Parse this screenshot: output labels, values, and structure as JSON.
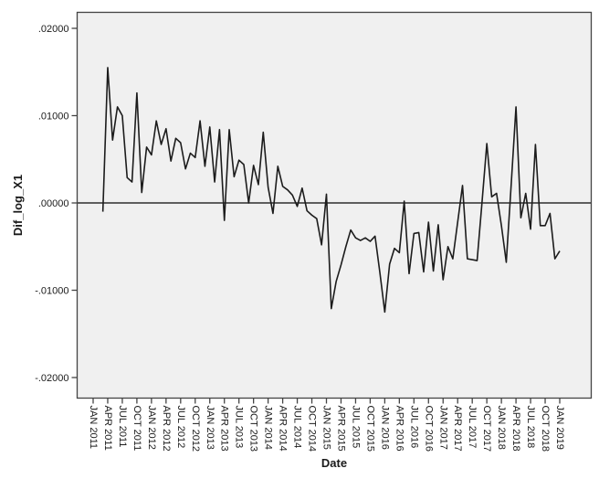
{
  "figure": {
    "background": "#ffffff",
    "plot_background": "#f0f0f0",
    "frame_color": "#444444",
    "series_color": "#1c1c1c",
    "zero_line_color": "#2e2e2e",
    "text_color": "#1a1a1a"
  },
  "y_axis": {
    "title": "Dif_log_X1",
    "tick_labels": [
      ".02000",
      ".01000",
      ".00000",
      "-.01000",
      "-.02000"
    ],
    "tick_values": [
      0.02,
      0.01,
      0.0,
      -0.01,
      -0.02
    ]
  },
  "x_axis": {
    "title": "Date",
    "tick_labels": [
      "JAN 2011",
      "APR 2011",
      "JUL 2011",
      "OCT 2011",
      "JAN 2012",
      "APR 2012",
      "JUL 2012",
      "OCT 2012",
      "JAN 2013",
      "APR 2013",
      "JUL 2013",
      "OCT 2013",
      "JAN 2014",
      "APR 2014",
      "JUL 2014",
      "OCT 2014",
      "JAN 2015",
      "APR 2015",
      "JUL 2015",
      "OCT 2015",
      "JAN 2016",
      "APR 2016",
      "JUL 2016",
      "OCT 2016",
      "JAN 2017",
      "APR 2017",
      "JUL 2017",
      "OCT 2017",
      "JAN 2018",
      "APR 2018",
      "JUL 2018",
      "OCT 2018",
      "JAN 2019"
    ],
    "months_between_ticks": 3
  },
  "chart_data": {
    "type": "line",
    "title": "",
    "xlabel": "Date",
    "ylabel": "Dif_log_X1",
    "ylim": [
      -0.022,
      0.022
    ],
    "x_range_months": [
      "JAN 2011",
      "JAN 2019"
    ],
    "grid": false,
    "legend": "none",
    "reference_line_y": 0.0,
    "series": [
      {
        "name": "Dif_log_X1",
        "start_month": "MAR 2011",
        "end_month": "JAN 2019",
        "interval": "monthly",
        "values": [
          -0.001,
          0.0155,
          0.0072,
          0.011,
          0.01,
          0.0029,
          0.0024,
          0.0126,
          0.0012,
          0.0064,
          0.0055,
          0.0094,
          0.0067,
          0.0085,
          0.0048,
          0.0074,
          0.0069,
          0.0039,
          0.0057,
          0.0052,
          0.0094,
          0.0042,
          0.0087,
          0.0024,
          0.0084,
          -0.002,
          0.0084,
          0.003,
          0.0049,
          0.0044,
          0.0,
          0.0043,
          0.0021,
          0.0081,
          0.0018,
          -0.0012,
          0.0042,
          0.0019,
          0.0015,
          0.0009,
          -0.0004,
          0.0017,
          -0.0009,
          -0.0014,
          -0.0018,
          -0.0048,
          0.001,
          -0.0121,
          -0.009,
          -0.0071,
          -0.005,
          -0.0031,
          -0.004,
          -0.0043,
          -0.004,
          -0.0044,
          -0.0038,
          -0.008,
          -0.0125,
          -0.007,
          -0.0052,
          -0.0057,
          0.0002,
          -0.0081,
          -0.0035,
          -0.0034,
          -0.0079,
          -0.0022,
          -0.0078,
          -0.0025,
          -0.0088,
          -0.005,
          -0.0064,
          -0.0022,
          0.002,
          -0.0064,
          -0.0065,
          -0.0066,
          0.0,
          0.0068,
          0.0007,
          0.0011,
          -0.0026,
          -0.0068,
          0.002,
          0.011,
          -0.0017,
          0.0011,
          -0.003,
          0.0067,
          -0.0026,
          -0.0026,
          -0.0012,
          -0.0064,
          -0.0055
        ]
      }
    ]
  }
}
